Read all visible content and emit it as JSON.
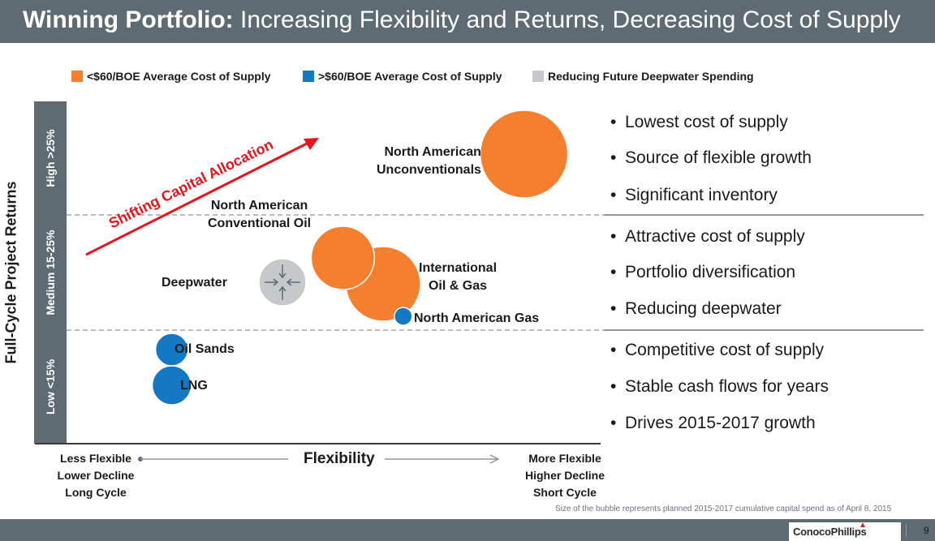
{
  "header": {
    "bold": "Winning Portfolio:",
    "rest": " Increasing Flexibility and Returns, Decreasing Cost of Supply"
  },
  "legend": [
    {
      "label": "<$60/BOE Average Cost of Supply",
      "color": "#f47f2f"
    },
    {
      "label": ">$60/BOE Average Cost of Supply",
      "color": "#1479c4"
    },
    {
      "label": "Reducing Future Deepwater Spending",
      "color": "#c6c9cb"
    }
  ],
  "y_axis_title": "Full-Cycle Project Returns",
  "bands": [
    "High >25%",
    "Medium 15-25%",
    "Low <15%"
  ],
  "arrow_label": "Shifting Capital Allocation",
  "x_axis": {
    "title": "Flexibility",
    "left_label": [
      "Less Flexible",
      "Lower Decline",
      "Long Cycle"
    ],
    "right_label": [
      "More Flexible",
      "Higher Decline",
      "Short Cycle"
    ]
  },
  "chart_data": {
    "type": "scatter",
    "note": "Size of the bubble represents planned 2015-2017 cumulative capital spend as of April 8, 2015",
    "series": [
      {
        "name": "<$60/BOE Average Cost of Supply",
        "color": "#f47f2f",
        "points": [
          {
            "label": "North American Unconventionals",
            "flexibility": 0.88,
            "returns": "High >25%",
            "size": 54
          },
          {
            "label": "North American Conventional Oil",
            "flexibility": 0.52,
            "returns": "Medium 15-25%",
            "size": 39
          },
          {
            "label": "International Oil & Gas",
            "flexibility": 0.6,
            "returns": "Medium 15-25%",
            "size": 46
          }
        ]
      },
      {
        "name": ">$60/BOE Average Cost of Supply",
        "color": "#1479c4",
        "points": [
          {
            "label": "North American Gas",
            "flexibility": 0.64,
            "returns": "Medium 15-25%",
            "size": 11
          },
          {
            "label": "Oil Sands",
            "flexibility": 0.18,
            "returns": "Low <15%",
            "size": 20
          },
          {
            "label": "LNG",
            "flexibility": 0.18,
            "returns": "Low <15%",
            "size": 24
          }
        ]
      },
      {
        "name": "Reducing Future Deepwater Spending",
        "color": "#c6c9cb",
        "points": [
          {
            "label": "Deepwater",
            "flexibility": 0.4,
            "returns": "Medium 15-25%",
            "size": 29
          }
        ]
      }
    ]
  },
  "bullets": {
    "high": [
      "Lowest cost of supply",
      "Source of flexible growth",
      "Significant inventory"
    ],
    "medium": [
      "Attractive cost of supply",
      "Portfolio diversification",
      "Reducing deepwater"
    ],
    "low": [
      "Competitive cost of supply",
      "Stable cash flows for years",
      "Drives 2015-2017 growth"
    ]
  },
  "footer": {
    "logo": "ConocoPhillips",
    "page": "9"
  }
}
